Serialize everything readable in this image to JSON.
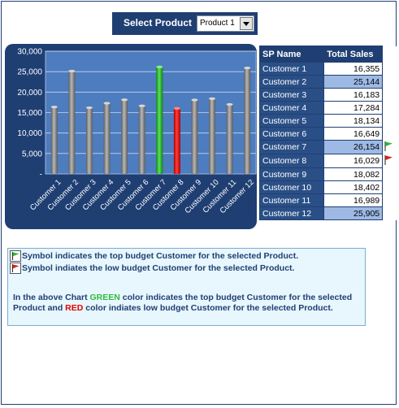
{
  "selector": {
    "label": "Select Product",
    "value": "Product 1"
  },
  "table": {
    "headers": [
      "SP Name",
      "Total Sales"
    ],
    "rows": [
      {
        "name": "Customer 1",
        "value": "16,355"
      },
      {
        "name": "Customer 2",
        "value": "25,144"
      },
      {
        "name": "Customer 3",
        "value": "16,183"
      },
      {
        "name": "Customer 4",
        "value": "17,284"
      },
      {
        "name": "Customer 5",
        "value": "18,134"
      },
      {
        "name": "Customer 6",
        "value": "16,649"
      },
      {
        "name": "Customer 7",
        "value": "26,154"
      },
      {
        "name": "Customer 8",
        "value": "16,029"
      },
      {
        "name": "Customer 9",
        "value": "18,082"
      },
      {
        "name": "Customer 10",
        "value": "18,402"
      },
      {
        "name": "Customer 11",
        "value": "16,989"
      },
      {
        "name": "Customer 12",
        "value": "25,905"
      }
    ]
  },
  "chart_data": {
    "type": "bar",
    "categories": [
      "Customer 1",
      "Customer 2",
      "Customer 3",
      "Customer 4",
      "Customer 5",
      "Customer 6",
      "Customer 7",
      "Customer 8",
      "Customer 9",
      "Customer 10",
      "Customer 11",
      "Customer 12"
    ],
    "values": [
      16355,
      25144,
      16183,
      17284,
      18134,
      16649,
      26154,
      16029,
      18082,
      18402,
      16989,
      25905
    ],
    "ylim": [
      0,
      30000
    ],
    "yticks": [
      0,
      5000,
      10000,
      15000,
      20000,
      25000,
      30000
    ],
    "ytick_labels": [
      "-",
      "5,000",
      "10,000",
      "15,000",
      "20,000",
      "25,000",
      "30,000"
    ],
    "grid": true,
    "colors": {
      "default": "#8a8a8a",
      "top": "#22bb22",
      "low": "#ee1111",
      "plot_bg": "#4d7cbf",
      "panel_bg": "#1f3f73"
    },
    "top_index": 6,
    "low_index": 7
  },
  "legend": {
    "top_text": "Symbol indicates the top budget Customer for the selected Product.",
    "low_text": "Symbol indiates the low budget Customer for the selected Product.",
    "para_prefix": "In the above Chart ",
    "green_word": "GREEN",
    "para_mid": " color indicates the top budget Customer for the selected Product and ",
    "red_word": "RED",
    "para_suffix": " color indiates low budget Customer for the selected Product."
  },
  "icons": {
    "top": "green-flag-icon",
    "low": "red-flag-icon"
  }
}
